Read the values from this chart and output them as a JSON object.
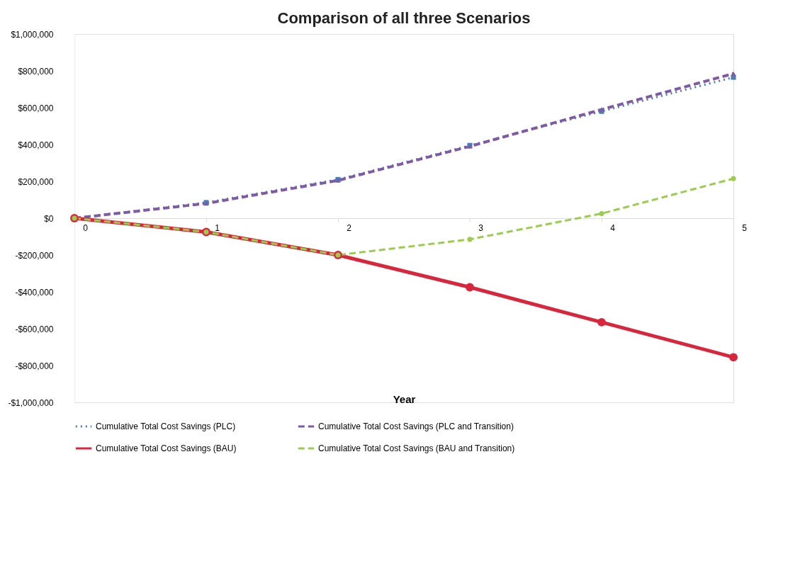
{
  "chart_data": {
    "type": "line",
    "title": "Comparison  of all three Scenarios",
    "xlabel": "Year",
    "categories": [
      "0",
      "1",
      "2",
      "3",
      "4",
      "5"
    ],
    "ylim": [
      -1000000,
      1000000
    ],
    "yticks": [
      {
        "value": -1000000,
        "label": "-$1,000,000"
      },
      {
        "value": -800000,
        "label": "-$800,000"
      },
      {
        "value": -600000,
        "label": "-$600,000"
      },
      {
        "value": -400000,
        "label": "-$400,000"
      },
      {
        "value": -200000,
        "label": "-$200,000"
      },
      {
        "value": 0,
        "label": "$0"
      },
      {
        "value": 200000,
        "label": "$200,000"
      },
      {
        "value": 400000,
        "label": "$400,000"
      },
      {
        "value": 600000,
        "label": "$600,000"
      },
      {
        "value": 800000,
        "label": "$800,000"
      },
      {
        "value": 1000000,
        "label": "$1,000,000"
      }
    ],
    "grid": false,
    "legend": "bottom",
    "series": [
      {
        "name": "Cumulative Total Cost Savings (PLC)",
        "color": "#4a7ebb",
        "marker": "square",
        "line_style": "dotted",
        "values": [
          0,
          85000,
          210000,
          395000,
          580000,
          765000
        ]
      },
      {
        "name": "Cumulative Total Cost Savings (PLC and Transition)",
        "color": "#8059a6",
        "marker": "triangle",
        "line_style": "dashed",
        "values": [
          0,
          80000,
          205000,
          390000,
          590000,
          785000
        ]
      },
      {
        "name": "Cumulative Total Cost Savings (BAU)",
        "color": "#d9263c",
        "marker": "circle",
        "line_style": "solid",
        "values": [
          0,
          -75000,
          -200000,
          -375000,
          -565000,
          -755000
        ]
      },
      {
        "name": "Cumulative Total Cost Savings (BAU and Transition)",
        "color": "#9acd4c",
        "marker": "circle",
        "line_style": "dashed",
        "values": [
          0,
          -75000,
          -200000,
          -115000,
          25000,
          215000
        ]
      }
    ]
  }
}
